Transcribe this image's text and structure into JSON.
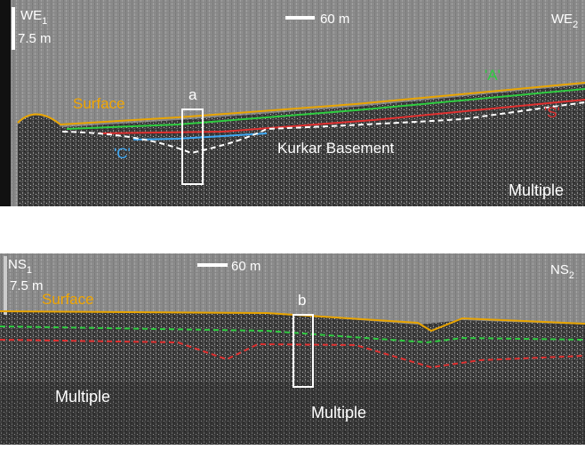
{
  "panels": [
    {
      "start": {
        "name": "WE",
        "sub": "1"
      },
      "end": {
        "name": "WE",
        "sub": "2"
      },
      "vertical_scale": "7.5 m",
      "horizontal_scale": "60 m",
      "labels": {
        "surface": "Surface",
        "box": "a",
        "reflector_a": "'A'",
        "reflector_s": "'S'",
        "reflector_c": "'C'",
        "basement": "Kurkar Basement",
        "multiple": "Multiple"
      }
    },
    {
      "start": {
        "name": "NS",
        "sub": "1"
      },
      "end": {
        "name": "NS",
        "sub": "2"
      },
      "vertical_scale": "7.5 m",
      "horizontal_scale": "60 m",
      "labels": {
        "surface": "Surface",
        "box": "b",
        "multiple_left": "Multiple",
        "multiple_center": "Multiple"
      }
    }
  ]
}
